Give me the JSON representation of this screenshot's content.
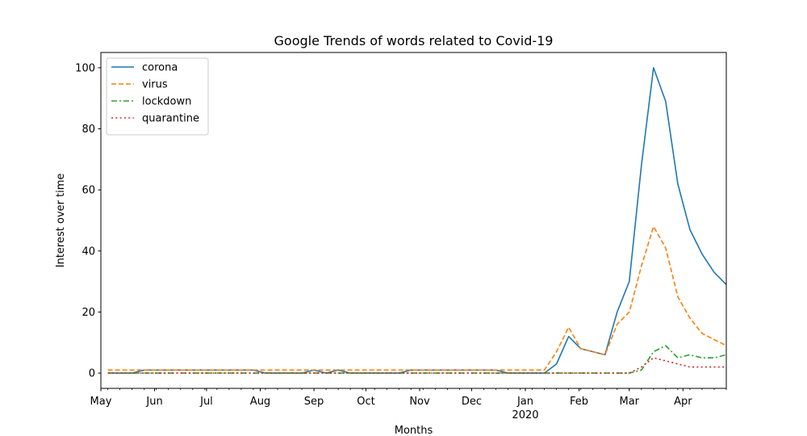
{
  "chart_data": {
    "type": "line",
    "title": "Google Trends of words related to Covid-19",
    "xlabel": "Months",
    "ylabel": "Interest over time",
    "x_tick_labels": [
      "May",
      "Jun",
      "Jul",
      "Aug",
      "Sep",
      "Oct",
      "Nov",
      "Dec",
      "Jan",
      "Feb",
      "Mar",
      "Apr"
    ],
    "x_tick_year_label": "2020",
    "y_ticks": [
      0,
      20,
      40,
      60,
      80,
      100
    ],
    "ylim": [
      -5,
      105
    ],
    "x": [
      "2019-05-05",
      "2019-05-12",
      "2019-05-19",
      "2019-05-26",
      "2019-06-02",
      "2019-06-09",
      "2019-06-16",
      "2019-06-23",
      "2019-06-30",
      "2019-07-07",
      "2019-07-14",
      "2019-07-21",
      "2019-07-28",
      "2019-08-04",
      "2019-08-11",
      "2019-08-18",
      "2019-08-25",
      "2019-09-01",
      "2019-09-08",
      "2019-09-15",
      "2019-09-22",
      "2019-09-29",
      "2019-10-06",
      "2019-10-13",
      "2019-10-20",
      "2019-10-27",
      "2019-11-03",
      "2019-11-10",
      "2019-11-17",
      "2019-11-24",
      "2019-12-01",
      "2019-12-08",
      "2019-12-15",
      "2019-12-22",
      "2019-12-29",
      "2020-01-05",
      "2020-01-12",
      "2020-01-19",
      "2020-01-26",
      "2020-02-02",
      "2020-02-09",
      "2020-02-16",
      "2020-02-23",
      "2020-03-01",
      "2020-03-08",
      "2020-03-15",
      "2020-03-22",
      "2020-03-29",
      "2020-04-05",
      "2020-04-12",
      "2020-04-19",
      "2020-04-26"
    ],
    "xlim": [
      "2019-05-01",
      "2020-04-26"
    ],
    "series": [
      {
        "name": "corona",
        "color": "#1f77b4",
        "style": "solid",
        "values": [
          0,
          0,
          0,
          1,
          1,
          1,
          1,
          1,
          1,
          1,
          1,
          1,
          1,
          0,
          0,
          0,
          0,
          1,
          0,
          1,
          0,
          0,
          0,
          0,
          0,
          1,
          1,
          1,
          1,
          1,
          1,
          1,
          1,
          0,
          0,
          0,
          0,
          3,
          12,
          8,
          7,
          6,
          20,
          30,
          68,
          100,
          89,
          62,
          47,
          39,
          33,
          29
        ]
      },
      {
        "name": "virus",
        "color": "#ff7f0e",
        "style": "dashed",
        "values": [
          1,
          1,
          1,
          1,
          1,
          1,
          1,
          1,
          1,
          1,
          1,
          1,
          1,
          1,
          1,
          1,
          1,
          1,
          1,
          1,
          1,
          1,
          1,
          1,
          1,
          1,
          1,
          1,
          1,
          1,
          1,
          1,
          1,
          1,
          1,
          1,
          1,
          7,
          15,
          8,
          7,
          6,
          16,
          20,
          35,
          48,
          41,
          25,
          18,
          13,
          11,
          9
        ]
      },
      {
        "name": "lockdown",
        "color": "#2ca02c",
        "style": "dashdot",
        "values": [
          0,
          0,
          0,
          0,
          0,
          0,
          0,
          0,
          0,
          0,
          0,
          0,
          0,
          0,
          0,
          0,
          0,
          0,
          0,
          0,
          0,
          0,
          0,
          0,
          0,
          0,
          0,
          0,
          0,
          0,
          0,
          0,
          0,
          0,
          0,
          0,
          0,
          0,
          0,
          0,
          0,
          0,
          0,
          0,
          1,
          7,
          9,
          5,
          6,
          5,
          5,
          6
        ]
      },
      {
        "name": "quarantine",
        "color": "#d62728",
        "style": "dotted",
        "values": [
          0,
          0,
          0,
          0,
          0,
          0,
          0,
          0,
          0,
          0,
          0,
          0,
          0,
          0,
          0,
          0,
          0,
          0,
          0,
          0,
          0,
          0,
          0,
          0,
          0,
          0,
          0,
          0,
          0,
          0,
          0,
          0,
          0,
          0,
          0,
          0,
          0,
          0,
          0,
          0,
          0,
          0,
          0,
          0,
          2,
          5,
          4,
          3,
          2,
          2,
          2,
          2
        ]
      }
    ],
    "legend_position": "upper left",
    "grid": false
  }
}
